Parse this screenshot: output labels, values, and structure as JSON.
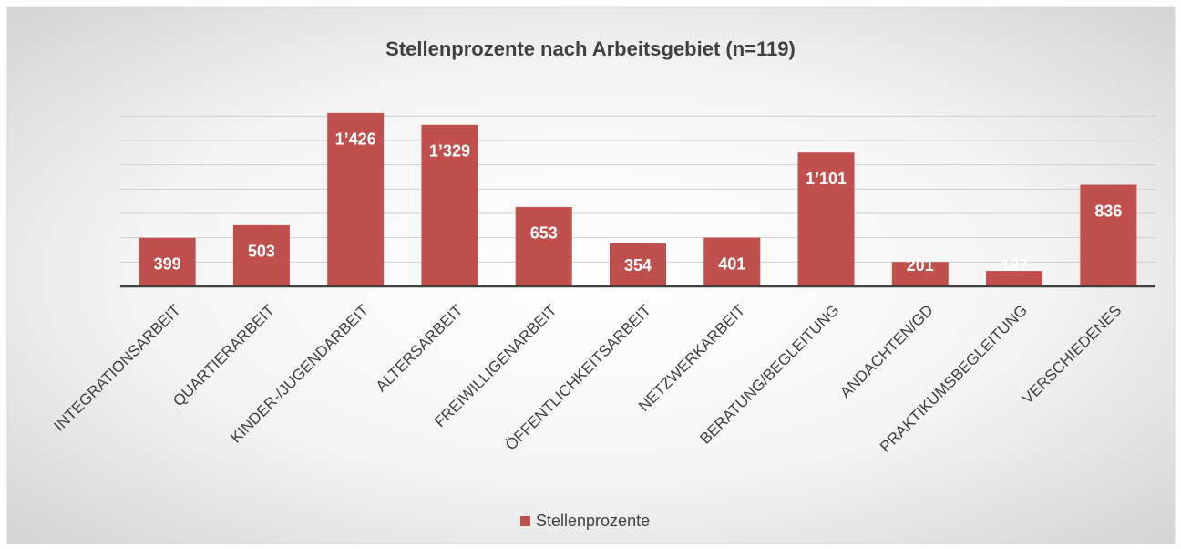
{
  "chart_data": {
    "type": "bar",
    "title": "Stellenprozente nach Arbeitsgebiet (n=119)",
    "categories": [
      "INTEGRATIONSARBEIT",
      "QUARTIERARBEIT",
      "KINDER-/JUGENDARBEIT",
      "ALTERSARBEIT",
      "FREIWILLIGENARBEIT",
      "ÖFFENTLICHKEITSARBEIT",
      "NETZWERKARBEIT",
      "BERATUNG/BEGLEITUNG",
      "ANDACHTEN/GD",
      "PRAKTIKUMSBEGLEITUNG",
      "VERSCHIEDENES"
    ],
    "series": [
      {
        "name": "Stellenprozente",
        "color": "#c0504d",
        "values": [
          399,
          503,
          1426,
          1329,
          653,
          354,
          401,
          1101,
          201,
          127,
          836
        ],
        "value_labels": [
          "399",
          "503",
          "1’426",
          "1’329",
          "653",
          "354",
          "401",
          "1’101",
          "201",
          "127",
          "836"
        ]
      }
    ],
    "ylim": [
      0,
      1500
    ],
    "yticks": [
      0,
      200,
      400,
      600,
      800,
      1000,
      1200,
      1400
    ],
    "grid": true,
    "legend": "bottom"
  }
}
